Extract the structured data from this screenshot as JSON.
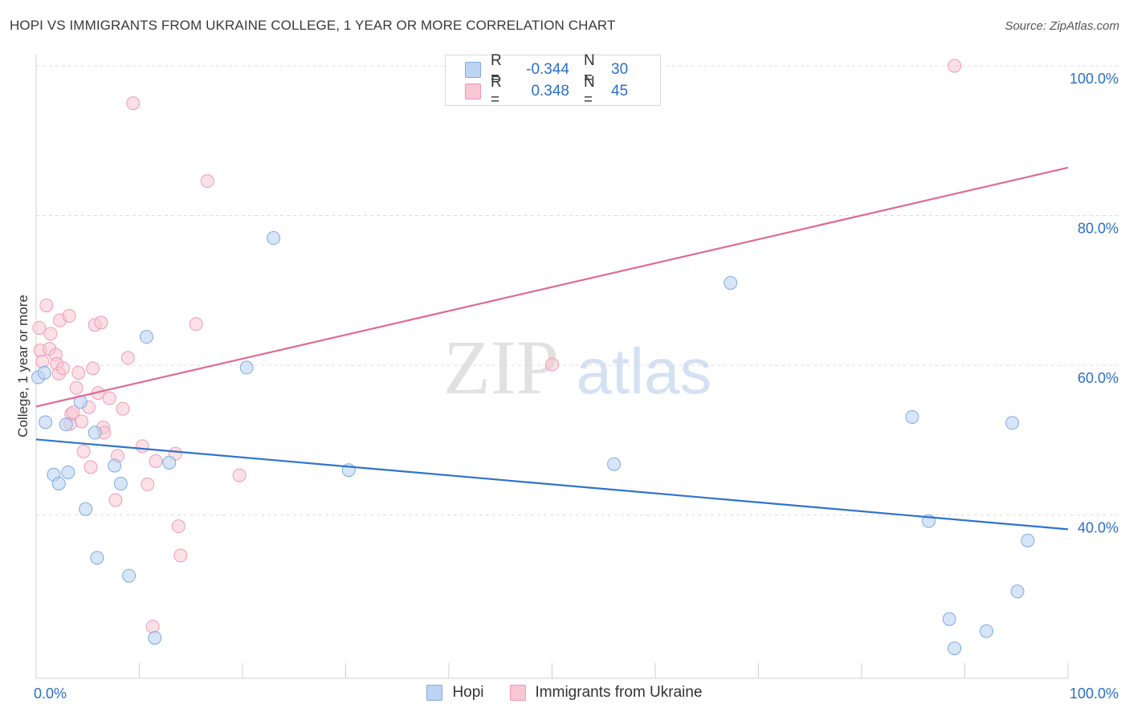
{
  "title": "HOPI VS IMMIGRANTS FROM UKRAINE COLLEGE, 1 YEAR OR MORE CORRELATION CHART",
  "source": "Source: ZipAtlas.com",
  "watermark": {
    "zip": "ZIP",
    "atlas": "atlas"
  },
  "legend": {
    "rows": [
      {
        "r_label": "R =",
        "r_value": "-0.344",
        "n_label": "N =",
        "n_value": "30"
      },
      {
        "r_label": "R =",
        "r_value": "0.348",
        "n_label": "N =",
        "n_value": "45"
      }
    ]
  },
  "bottom_legend": [
    "Hopi",
    "Immigrants from Ukraine"
  ],
  "colors": {
    "hopi_fill": "#bcd4f2",
    "hopi_stroke": "#7eaae0",
    "hopi_line": "#2f73cc",
    "ukr_fill": "#f8c6d4",
    "ukr_stroke": "#ee9ab5",
    "ukr_line": "#e06a93",
    "tick_text": "#2b6fc5",
    "grid": "#dcdcdc"
  },
  "chart_data": {
    "type": "scatter",
    "title": "HOPI VS IMMIGRANTS FROM UKRAINE COLLEGE, 1 YEAR OR MORE CORRELATION CHART",
    "xlabel": "",
    "ylabel": "College, 1 year or more",
    "xlim": [
      0,
      100
    ],
    "ylim": [
      18.2,
      101.5
    ],
    "x_tick_labels": [
      {
        "value": 0,
        "label": "0.0%"
      },
      {
        "value": 100,
        "label": "100.0%"
      }
    ],
    "y_tick_labels": [
      {
        "value": 100,
        "label": "100.0%"
      },
      {
        "value": 80,
        "label": "80.0%"
      },
      {
        "value": 60,
        "label": "60.0%"
      },
      {
        "value": 40,
        "label": "40.0%"
      }
    ],
    "y_gridlines": [
      40,
      60,
      80,
      100
    ],
    "series": [
      {
        "name": "Hopi",
        "r": -0.344,
        "n": 30,
        "trend": {
          "x": [
            0,
            100
          ],
          "y": [
            50.1,
            38.1
          ]
        },
        "points": [
          {
            "x": 0.2,
            "y": 58.4
          },
          {
            "x": 0.8,
            "y": 59.0
          },
          {
            "x": 0.9,
            "y": 52.4
          },
          {
            "x": 1.7,
            "y": 45.4
          },
          {
            "x": 2.2,
            "y": 44.2
          },
          {
            "x": 2.9,
            "y": 52.1
          },
          {
            "x": 3.1,
            "y": 45.7
          },
          {
            "x": 4.3,
            "y": 55.1
          },
          {
            "x": 4.8,
            "y": 40.8
          },
          {
            "x": 5.7,
            "y": 51.0
          },
          {
            "x": 5.9,
            "y": 34.3
          },
          {
            "x": 7.6,
            "y": 46.6
          },
          {
            "x": 8.2,
            "y": 44.2
          },
          {
            "x": 9.0,
            "y": 31.9
          },
          {
            "x": 10.7,
            "y": 63.8
          },
          {
            "x": 11.5,
            "y": 23.6
          },
          {
            "x": 12.9,
            "y": 47.0
          },
          {
            "x": 20.4,
            "y": 59.7
          },
          {
            "x": 23.0,
            "y": 77.0
          },
          {
            "x": 30.3,
            "y": 46.0
          },
          {
            "x": 56.0,
            "y": 46.8
          },
          {
            "x": 67.3,
            "y": 71.0
          },
          {
            "x": 84.9,
            "y": 53.1
          },
          {
            "x": 86.5,
            "y": 39.2
          },
          {
            "x": 88.5,
            "y": 26.1
          },
          {
            "x": 89.0,
            "y": 22.2
          },
          {
            "x": 92.1,
            "y": 24.5
          },
          {
            "x": 94.6,
            "y": 52.3
          },
          {
            "x": 95.1,
            "y": 29.8
          },
          {
            "x": 96.1,
            "y": 36.6
          }
        ]
      },
      {
        "name": "Immigrants from Ukraine",
        "r": 0.348,
        "n": 45,
        "trend": {
          "x": [
            0,
            100
          ],
          "y": [
            54.5,
            86.4
          ]
        },
        "points": [
          {
            "x": 0.3,
            "y": 65.0
          },
          {
            "x": 0.4,
            "y": 62.0
          },
          {
            "x": 0.6,
            "y": 60.5
          },
          {
            "x": 1.0,
            "y": 68.0
          },
          {
            "x": 1.3,
            "y": 62.2
          },
          {
            "x": 1.4,
            "y": 64.2
          },
          {
            "x": 1.9,
            "y": 61.4
          },
          {
            "x": 2.0,
            "y": 60.2
          },
          {
            "x": 2.2,
            "y": 58.9
          },
          {
            "x": 2.3,
            "y": 66.0
          },
          {
            "x": 2.6,
            "y": 59.6
          },
          {
            "x": 3.2,
            "y": 66.6
          },
          {
            "x": 3.3,
            "y": 52.2
          },
          {
            "x": 3.4,
            "y": 53.5
          },
          {
            "x": 3.6,
            "y": 53.7
          },
          {
            "x": 3.9,
            "y": 57.0
          },
          {
            "x": 4.1,
            "y": 59.0
          },
          {
            "x": 4.4,
            "y": 52.5
          },
          {
            "x": 4.6,
            "y": 48.5
          },
          {
            "x": 5.1,
            "y": 54.4
          },
          {
            "x": 5.3,
            "y": 46.4
          },
          {
            "x": 5.5,
            "y": 59.6
          },
          {
            "x": 5.7,
            "y": 65.4
          },
          {
            "x": 6.0,
            "y": 56.3
          },
          {
            "x": 6.3,
            "y": 65.7
          },
          {
            "x": 6.5,
            "y": 51.7
          },
          {
            "x": 6.6,
            "y": 51.0
          },
          {
            "x": 7.1,
            "y": 55.6
          },
          {
            "x": 7.7,
            "y": 42.0
          },
          {
            "x": 7.9,
            "y": 47.9
          },
          {
            "x": 8.4,
            "y": 54.2
          },
          {
            "x": 8.9,
            "y": 61.0
          },
          {
            "x": 9.4,
            "y": 95.0
          },
          {
            "x": 10.3,
            "y": 49.2
          },
          {
            "x": 10.8,
            "y": 44.1
          },
          {
            "x": 11.3,
            "y": 25.1
          },
          {
            "x": 11.6,
            "y": 47.2
          },
          {
            "x": 13.5,
            "y": 48.2
          },
          {
            "x": 13.8,
            "y": 38.5
          },
          {
            "x": 14.0,
            "y": 34.6
          },
          {
            "x": 15.5,
            "y": 65.5
          },
          {
            "x": 16.6,
            "y": 84.6
          },
          {
            "x": 19.7,
            "y": 45.3
          },
          {
            "x": 50.0,
            "y": 60.1
          },
          {
            "x": 89.0,
            "y": 100.0
          }
        ]
      }
    ]
  }
}
